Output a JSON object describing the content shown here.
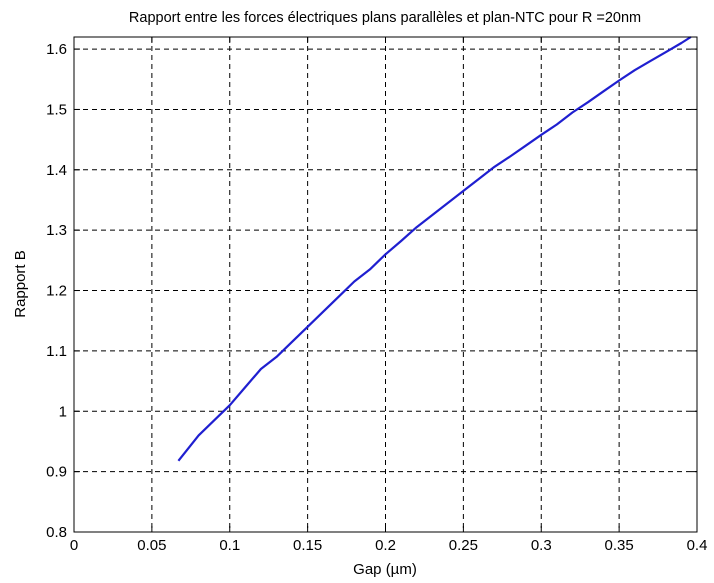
{
  "chart_data": {
    "type": "line",
    "title": "Rapport entre les forces électriques plans parallèles et plan-NTC pour R =20nm",
    "xlabel": "Gap (µm)",
    "ylabel": "Rapport B",
    "xlim": [
      0,
      0.4
    ],
    "ylim": [
      0.8,
      1.62
    ],
    "xticks": [
      0,
      0.05,
      0.1,
      0.15,
      0.2,
      0.25,
      0.3,
      0.35,
      0.4
    ],
    "xtick_labels": [
      "0",
      "0.05",
      "0.1",
      "0.15",
      "0.2",
      "0.25",
      "0.3",
      "0.35",
      "0.4"
    ],
    "yticks": [
      0.8,
      0.9,
      1.0,
      1.1,
      1.2,
      1.3,
      1.4,
      1.5,
      1.6
    ],
    "ytick_labels": [
      "0.8",
      "0.9",
      "1",
      "1.1",
      "1.2",
      "1.3",
      "1.4",
      "1.5",
      "1.6"
    ],
    "grid": true,
    "line_color": "#1f1fd0",
    "series": [
      {
        "x": [
          0.067,
          0.08,
          0.09,
          0.1,
          0.11,
          0.12,
          0.13,
          0.14,
          0.15,
          0.16,
          0.17,
          0.18,
          0.19,
          0.2,
          0.21,
          0.22,
          0.23,
          0.24,
          0.25,
          0.26,
          0.27,
          0.28,
          0.29,
          0.3,
          0.31,
          0.32,
          0.33,
          0.34,
          0.35,
          0.36,
          0.37,
          0.38,
          0.39,
          0.396
        ],
        "y": [
          0.918,
          0.96,
          0.985,
          1.01,
          1.04,
          1.07,
          1.09,
          1.115,
          1.14,
          1.165,
          1.19,
          1.215,
          1.235,
          1.26,
          1.282,
          1.305,
          1.325,
          1.345,
          1.365,
          1.385,
          1.405,
          1.422,
          1.44,
          1.458,
          1.475,
          1.495,
          1.512,
          1.53,
          1.548,
          1.565,
          1.58,
          1.595,
          1.61,
          1.62
        ]
      }
    ]
  }
}
